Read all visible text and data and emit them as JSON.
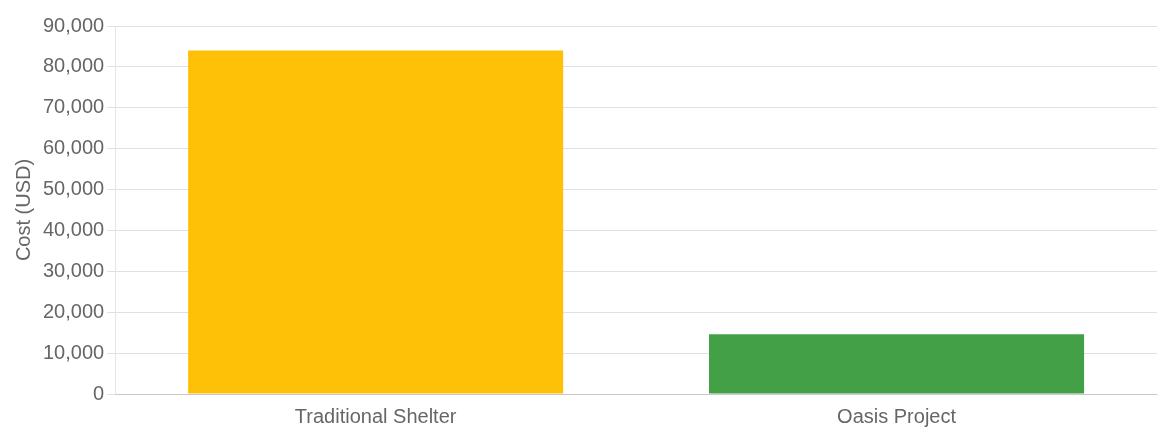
{
  "chart_data": {
    "type": "bar",
    "ylabel": "Cost (USD)",
    "categories": [
      "Traditional Shelter",
      "Oasis Project"
    ],
    "values": [
      84000,
      14600
    ],
    "colors": [
      "#ffc107",
      "#43a047"
    ],
    "ylim": [
      0,
      90000
    ],
    "yticks": [
      {
        "value": 0,
        "label": "0"
      },
      {
        "value": 10000,
        "label": "10,000"
      },
      {
        "value": 20000,
        "label": "20,000"
      },
      {
        "value": 30000,
        "label": "30,000"
      },
      {
        "value": 40000,
        "label": "40,000"
      },
      {
        "value": 50000,
        "label": "50,000"
      },
      {
        "value": 60000,
        "label": "60,000"
      },
      {
        "value": 70000,
        "label": "70,000"
      },
      {
        "value": 80000,
        "label": "80,000"
      },
      {
        "value": 90000,
        "label": "90,000"
      }
    ],
    "grid": "y",
    "legend": false
  }
}
